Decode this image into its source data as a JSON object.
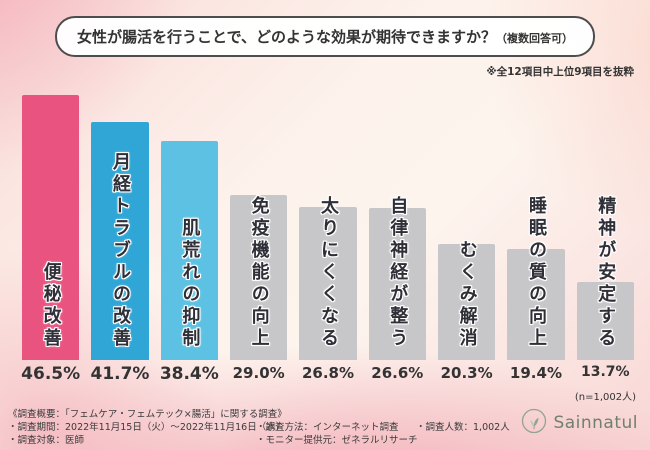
{
  "title": {
    "main": "女性が腸活を行うことで、どのような効果が期待できますか？",
    "suffix": "（複数回答可）"
  },
  "note": "※全12項目中上位9項目を抜粋",
  "n_label": "(n=1,002人)",
  "chart_data": {
    "type": "bar",
    "title": "女性が腸活を行うことで、どのような効果が期待できますか？（複数回答可）",
    "categories": [
      "便秘改善",
      "月経トラブルの改善",
      "肌荒れの抑制",
      "免疫機能の向上",
      "太りにくくなる",
      "自律神経が整う",
      "むくみ解消",
      "睡眠の質の向上",
      "精神が安定する"
    ],
    "values": [
      46.5,
      41.7,
      38.4,
      29.0,
      26.8,
      26.6,
      20.3,
      19.4,
      13.7
    ],
    "value_labels": [
      "46.5%",
      "41.7%",
      "38.4%",
      "29.0%",
      "26.8%",
      "26.6%",
      "20.3%",
      "19.4%",
      "13.7%"
    ],
    "bar_colors": [
      "#e9537f",
      "#2fa6d6",
      "#5cc1e2",
      "#c7c7c9",
      "#c7c7c9",
      "#c7c7c9",
      "#c7c7c9",
      "#c7c7c9",
      "#c7c7c9"
    ],
    "xlabel": "",
    "ylabel": "",
    "ylim": [
      0,
      50
    ],
    "grid": false,
    "legend": "none",
    "n": "1,002"
  },
  "footer": {
    "line1": "《調査概要：「フェムケア・フェムテック×腸活」に関する調査》",
    "line2": "・調査期間：2022年11月15日（火）〜2022年11月16日（水）",
    "line3": "・調査対象：医師",
    "line4": "・調査方法：インターネット調査",
    "line5": "・モニター提供元：ゼネラルリサーチ",
    "line6": "・調査人数：1,002人"
  },
  "logo": {
    "text": "Sainnatul"
  }
}
